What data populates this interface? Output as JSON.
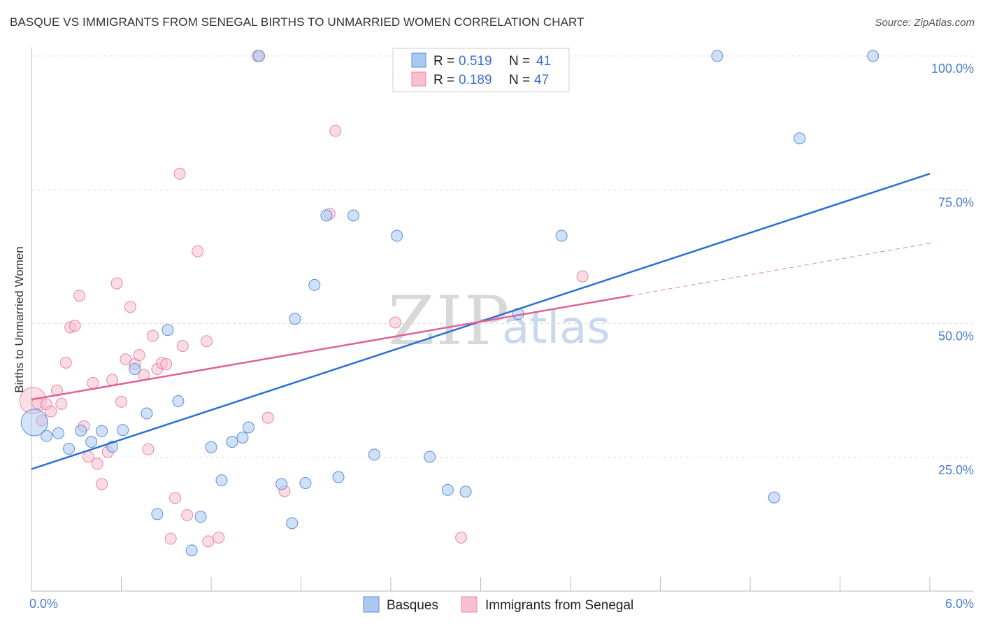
{
  "title": "BASQUE VS IMMIGRANTS FROM SENEGAL BIRTHS TO UNMARRIED WOMEN CORRELATION CHART",
  "source": "Source: ZipAtlas.com",
  "watermark": {
    "zip": "ZIP",
    "atlas": "atlas"
  },
  "colors": {
    "basques_fill": "#aac8f0",
    "basques_stroke": "#5a8fd8",
    "basques_line": "#2c6fd0",
    "senegal_fill": "#f7bfd0",
    "senegal_stroke": "#e888a8",
    "senegal_line": "#e0609a",
    "tick_text": "#4a7fd0",
    "grid": "#dddddd"
  },
  "legend": {
    "rows": [
      {
        "r_label": "R =",
        "r_value": "0.519",
        "n_label": "N =",
        "n_value": "41"
      },
      {
        "r_label": "R =",
        "r_value": "0.189",
        "n_label": "N =",
        "n_value": "47"
      }
    ],
    "bottom": [
      "Basques",
      "Immigrants from Senegal"
    ]
  },
  "chart_data": {
    "type": "scatter",
    "title": "BASQUE VS IMMIGRANTS FROM SENEGAL BIRTHS TO UNMARRIED WOMEN CORRELATION CHART",
    "xlabel": "",
    "ylabel": "Births to Unmarried Women",
    "xlim": [
      0,
      6
    ],
    "ylim": [
      0,
      100
    ],
    "x_tick_labels": [
      "0.0%",
      "6.0%"
    ],
    "y_tick_labels": [
      "25.0%",
      "50.0%",
      "75.0%",
      "100.0%"
    ],
    "y_ticks": [
      25,
      50,
      75,
      100
    ],
    "grid": true,
    "legend_position": "top-center",
    "series": [
      {
        "name": "Basques",
        "R": 0.519,
        "N": 41,
        "trend": {
          "x": [
            0,
            6
          ],
          "y": [
            22.8,
            78.0
          ]
        },
        "points": [
          {
            "x": 0.02,
            "y": 31.5,
            "big": true
          },
          {
            "x": 0.1,
            "y": 29.0
          },
          {
            "x": 0.18,
            "y": 29.5
          },
          {
            "x": 0.25,
            "y": 26.6
          },
          {
            "x": 0.33,
            "y": 30.0
          },
          {
            "x": 0.4,
            "y": 27.9
          },
          {
            "x": 0.47,
            "y": 29.9
          },
          {
            "x": 0.54,
            "y": 27.0
          },
          {
            "x": 0.61,
            "y": 30.1
          },
          {
            "x": 0.69,
            "y": 41.5
          },
          {
            "x": 0.77,
            "y": 33.2
          },
          {
            "x": 0.84,
            "y": 14.4
          },
          {
            "x": 0.91,
            "y": 48.8
          },
          {
            "x": 0.98,
            "y": 35.5
          },
          {
            "x": 1.07,
            "y": 7.6
          },
          {
            "x": 1.13,
            "y": 13.9
          },
          {
            "x": 1.2,
            "y": 26.9
          },
          {
            "x": 1.27,
            "y": 20.7
          },
          {
            "x": 1.34,
            "y": 27.9
          },
          {
            "x": 1.41,
            "y": 28.7
          },
          {
            "x": 1.45,
            "y": 30.6
          },
          {
            "x": 1.52,
            "y": 100.0
          },
          {
            "x": 1.67,
            "y": 20.0
          },
          {
            "x": 1.74,
            "y": 12.7
          },
          {
            "x": 1.76,
            "y": 50.9
          },
          {
            "x": 1.83,
            "y": 20.2
          },
          {
            "x": 1.89,
            "y": 57.2
          },
          {
            "x": 1.97,
            "y": 70.2
          },
          {
            "x": 2.05,
            "y": 21.3
          },
          {
            "x": 2.15,
            "y": 70.2
          },
          {
            "x": 2.29,
            "y": 25.5
          },
          {
            "x": 2.44,
            "y": 66.4
          },
          {
            "x": 2.66,
            "y": 25.1
          },
          {
            "x": 2.78,
            "y": 18.9
          },
          {
            "x": 2.9,
            "y": 18.6
          },
          {
            "x": 3.25,
            "y": 51.8
          },
          {
            "x": 3.54,
            "y": 66.4
          },
          {
            "x": 4.58,
            "y": 100.0
          },
          {
            "x": 4.96,
            "y": 17.5
          },
          {
            "x": 5.13,
            "y": 84.6
          },
          {
            "x": 5.62,
            "y": 100.0
          }
        ]
      },
      {
        "name": "Immigrants from Senegal",
        "R": 0.189,
        "N": 47,
        "trend": {
          "x": [
            0,
            4.0
          ],
          "y": [
            35.8,
            55.2
          ]
        },
        "trend_dashed": {
          "x": [
            4.0,
            6.0
          ],
          "y": [
            55.2,
            65.0
          ]
        },
        "points": [
          {
            "x": 0.01,
            "y": 35.6,
            "big": true
          },
          {
            "x": 0.04,
            "y": 35.1
          },
          {
            "x": 0.07,
            "y": 31.9
          },
          {
            "x": 0.1,
            "y": 34.9
          },
          {
            "x": 0.13,
            "y": 33.6
          },
          {
            "x": 0.17,
            "y": 37.5
          },
          {
            "x": 0.2,
            "y": 35.0
          },
          {
            "x": 0.23,
            "y": 42.7
          },
          {
            "x": 0.26,
            "y": 49.3
          },
          {
            "x": 0.29,
            "y": 49.6
          },
          {
            "x": 0.32,
            "y": 55.2
          },
          {
            "x": 0.35,
            "y": 30.8
          },
          {
            "x": 0.38,
            "y": 25.1
          },
          {
            "x": 0.41,
            "y": 38.9
          },
          {
            "x": 0.44,
            "y": 23.8
          },
          {
            "x": 0.47,
            "y": 20.0
          },
          {
            "x": 0.51,
            "y": 26.0
          },
          {
            "x": 0.54,
            "y": 39.5
          },
          {
            "x": 0.57,
            "y": 57.5
          },
          {
            "x": 0.6,
            "y": 35.4
          },
          {
            "x": 0.63,
            "y": 43.3
          },
          {
            "x": 0.66,
            "y": 53.1
          },
          {
            "x": 0.69,
            "y": 42.4
          },
          {
            "x": 0.72,
            "y": 44.1
          },
          {
            "x": 0.75,
            "y": 40.4
          },
          {
            "x": 0.78,
            "y": 26.5
          },
          {
            "x": 0.81,
            "y": 47.7
          },
          {
            "x": 0.84,
            "y": 41.5
          },
          {
            "x": 0.87,
            "y": 42.6
          },
          {
            "x": 0.9,
            "y": 42.4
          },
          {
            "x": 0.93,
            "y": 9.8
          },
          {
            "x": 0.96,
            "y": 17.4
          },
          {
            "x": 0.99,
            "y": 78.0
          },
          {
            "x": 1.01,
            "y": 45.8
          },
          {
            "x": 1.04,
            "y": 14.2
          },
          {
            "x": 1.11,
            "y": 63.5
          },
          {
            "x": 1.17,
            "y": 46.7
          },
          {
            "x": 1.18,
            "y": 9.3
          },
          {
            "x": 1.25,
            "y": 10.0
          },
          {
            "x": 1.51,
            "y": 100.0
          },
          {
            "x": 1.58,
            "y": 32.4
          },
          {
            "x": 1.69,
            "y": 18.7
          },
          {
            "x": 1.99,
            "y": 70.5
          },
          {
            "x": 2.03,
            "y": 86.0
          },
          {
            "x": 2.43,
            "y": 50.2
          },
          {
            "x": 2.87,
            "y": 10.0
          },
          {
            "x": 3.68,
            "y": 58.8
          }
        ]
      }
    ]
  }
}
